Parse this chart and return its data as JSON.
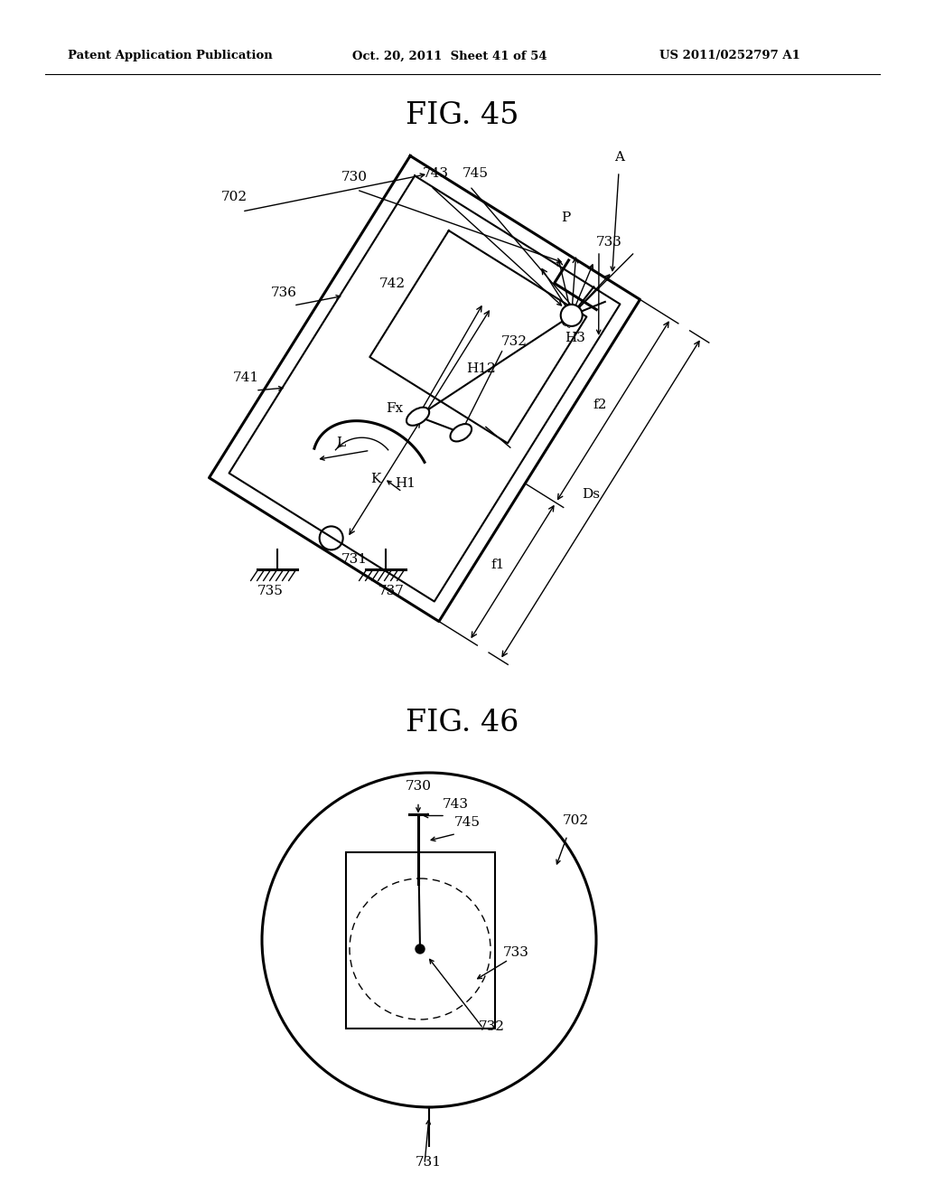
{
  "header_left": "Patent Application Publication",
  "header_mid": "Oct. 20, 2011  Sheet 41 of 54",
  "header_right": "US 2011/0252797 A1",
  "fig45_title": "FIG. 45",
  "fig46_title": "FIG. 46",
  "bg_color": "#ffffff",
  "line_color": "#000000"
}
